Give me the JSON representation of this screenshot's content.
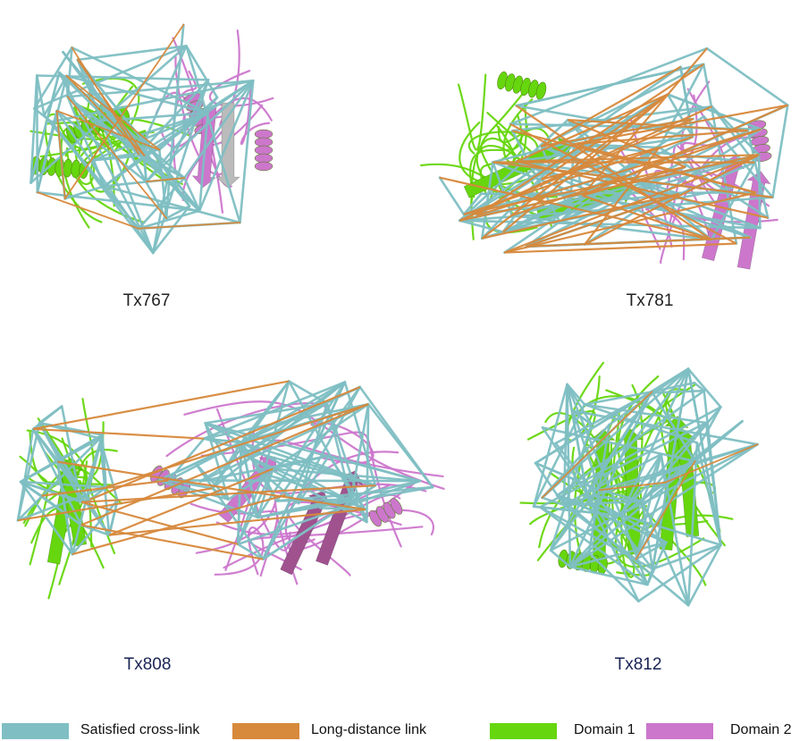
{
  "panels": [
    {
      "id": "p1",
      "label": "Tx767"
    },
    {
      "id": "p2",
      "label": "Tx781"
    },
    {
      "id": "p3",
      "label": "Tx808"
    },
    {
      "id": "p4",
      "label": "Tx812"
    }
  ],
  "legend": [
    {
      "label": "Satisfied cross-link",
      "color": "#7fbfc3"
    },
    {
      "label": "Long-distance link",
      "color": "#d7893c"
    },
    {
      "label": "Domain 1",
      "color": "#66d60e"
    },
    {
      "label": "Domain 2",
      "color": "#cc77cc"
    }
  ],
  "colors": {
    "cyan": "#7fbfc3",
    "orange": "#d7893c",
    "green": "#66d60e",
    "pink": "#cc77cc",
    "grey": "#bbbbbb",
    "caption_top": "#222222",
    "caption_bottom": "#1a2456"
  }
}
